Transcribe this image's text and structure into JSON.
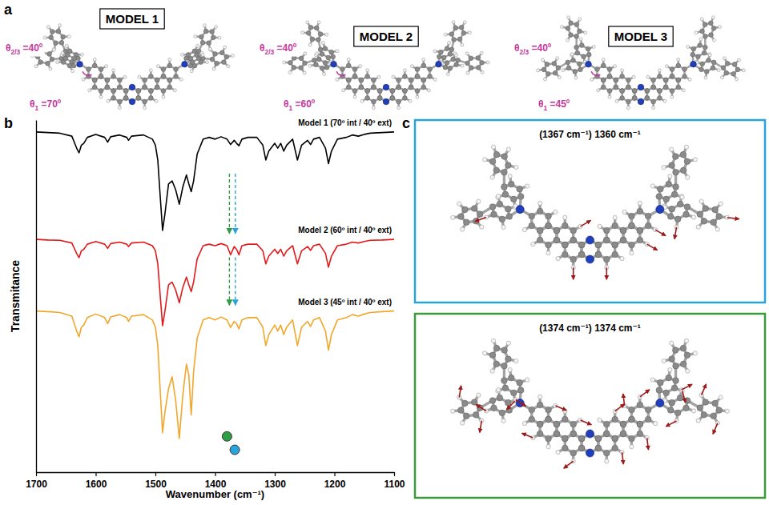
{
  "panel_labels": [
    "a",
    "b",
    "c"
  ],
  "models": [
    {
      "title": "MODEL 1",
      "theta_ext": {
        "symbol": "θ",
        "sub": "2/3",
        "text": " =40º",
        "value": 40
      },
      "theta_int": {
        "symbol": "θ",
        "sub": "1",
        "text": " =70º",
        "value": 70
      }
    },
    {
      "title": "MODEL 2",
      "theta_ext": {
        "symbol": "θ",
        "sub": "2/3",
        "text": " =40º",
        "value": 40
      },
      "theta_int": {
        "symbol": "θ",
        "sub": "1",
        "text": " =60º",
        "value": 60
      }
    },
    {
      "title": "MODEL 3",
      "theta_ext": {
        "symbol": "θ",
        "sub": "2/3",
        "text": " =40º",
        "value": 40
      },
      "theta_int": {
        "symbol": "θ",
        "sub": "1",
        "text": " =45º",
        "value": 45
      }
    }
  ],
  "chart_data": {
    "type": "line",
    "x_label": "Wavenumber (cm⁻¹)",
    "y_label": "Transmitance",
    "x": [
      1700,
      1680,
      1660,
      1640,
      1632,
      1628,
      1624,
      1620,
      1614,
      1600,
      1585,
      1580,
      1575,
      1560,
      1548,
      1545,
      1540,
      1520,
      1505,
      1500,
      1496,
      1492,
      1488,
      1484,
      1478,
      1472,
      1466,
      1460,
      1454,
      1448,
      1444,
      1440,
      1436,
      1430,
      1420,
      1410,
      1400,
      1390,
      1380,
      1374,
      1368,
      1364,
      1360,
      1355,
      1345,
      1330,
      1320,
      1315,
      1310,
      1300,
      1295,
      1290,
      1285,
      1280,
      1270,
      1262,
      1255,
      1245,
      1240,
      1235,
      1225,
      1215,
      1210,
      1205,
      1195,
      1180,
      1170,
      1160,
      1150,
      1140,
      1120,
      1100
    ],
    "series": [
      {
        "name": "Model 1 (70º int / 40º ext)",
        "color": "#000000",
        "values": [
          114.0,
          113.8,
          113.6,
          112.6,
          108.6,
          107.0,
          109.6,
          110.2,
          112.2,
          113.2,
          112.2,
          110.6,
          112.4,
          113.0,
          112.2,
          111.2,
          112.6,
          113.0,
          111.6,
          109.6,
          104.6,
          92.6,
          81.0,
          86.6,
          96.6,
          97.6,
          94.6,
          89.8,
          95.6,
          99.6,
          96.6,
          94.0,
          97.6,
          106.6,
          111.6,
          112.2,
          111.6,
          112.4,
          111.6,
          109.8,
          111.2,
          110.2,
          109.4,
          111.6,
          112.2,
          112.2,
          109.6,
          104.6,
          107.6,
          110.2,
          108.6,
          110.2,
          107.6,
          109.6,
          111.6,
          104.6,
          109.6,
          111.2,
          109.8,
          111.6,
          112.2,
          108.6,
          103.4,
          107.6,
          111.6,
          112.2,
          113.0,
          112.6,
          113.2,
          113.6,
          113.8,
          114.0
        ]
      },
      {
        "name": "Model 2 (60º int / 40º ext)",
        "color": "#e31a1c",
        "values": [
          78.0,
          77.8,
          77.7,
          76.8,
          73.3,
          71.9,
          74.2,
          74.7,
          76.4,
          77.3,
          76.4,
          75.0,
          76.6,
          77.1,
          76.4,
          75.6,
          76.8,
          77.1,
          75.9,
          74.2,
          69.8,
          59.3,
          49.1,
          54.0,
          62.8,
          63.7,
          61.0,
          56.8,
          61.9,
          65.4,
          62.8,
          60.5,
          63.7,
          71.5,
          75.9,
          76.4,
          75.9,
          76.6,
          75.9,
          72.8,
          75.6,
          74.7,
          72.8,
          75.9,
          76.4,
          76.4,
          74.2,
          69.8,
          72.4,
          74.7,
          73.3,
          74.7,
          72.4,
          74.2,
          75.9,
          69.8,
          74.2,
          75.6,
          74.3,
          75.9,
          76.4,
          73.3,
          68.7,
          72.4,
          75.9,
          76.4,
          77.1,
          76.8,
          77.3,
          77.7,
          77.8,
          78.0
        ]
      },
      {
        "name": "Model 3 (45º int / 40º ext)",
        "color": "#f2a72b",
        "values": [
          54.0,
          53.8,
          53.5,
          52.3,
          47.3,
          45.4,
          48.6,
          49.3,
          51.8,
          53.0,
          51.8,
          49.8,
          52.0,
          52.8,
          51.8,
          50.5,
          52.3,
          52.8,
          51.0,
          48.6,
          42.4,
          27.6,
          13.2,
          20.2,
          28.0,
          32.0,
          24.0,
          11.3,
          26.0,
          36.2,
          32.5,
          19.2,
          33.7,
          44.9,
          51.0,
          51.8,
          51.0,
          52.0,
          51.0,
          48.5,
          50.5,
          49.8,
          48.0,
          51.0,
          51.8,
          51.8,
          48.6,
          42.4,
          46.1,
          49.3,
          47.3,
          49.3,
          46.1,
          48.6,
          51.0,
          42.4,
          48.6,
          50.5,
          48.8,
          51.0,
          51.8,
          47.3,
          40.9,
          46.1,
          51.0,
          51.8,
          52.8,
          52.3,
          53.0,
          53.5,
          53.8,
          54.0
        ]
      }
    ],
    "xlim": [
      1700,
      1100
    ],
    "xticks": [
      1700,
      1600,
      1500,
      1400,
      1300,
      1200,
      1100
    ],
    "ylim": [
      0,
      118
    ],
    "tick_labels": "x",
    "arrows": [
      {
        "x": 1376,
        "color": "#2e9e45",
        "spans": [
          [
            100,
            80
          ],
          [
            72,
            56
          ]
        ]
      },
      {
        "x": 1366,
        "color": "#29a3dc",
        "spans": [
          [
            100,
            80
          ],
          [
            72,
            56
          ]
        ]
      }
    ],
    "markers": [
      {
        "x": 1380,
        "y": 12.0,
        "color": "#2e9e45"
      },
      {
        "x": 1367,
        "y": 7.5,
        "color": "#29a3dc"
      }
    ]
  },
  "modes": [
    {
      "title": "(1367 cm⁻¹) 1360 cm⁻¹",
      "color": "#29a3dc"
    },
    {
      "title": "(1374 cm⁻¹) 1374 cm⁻¹",
      "color": "#3b9b3b"
    }
  ]
}
